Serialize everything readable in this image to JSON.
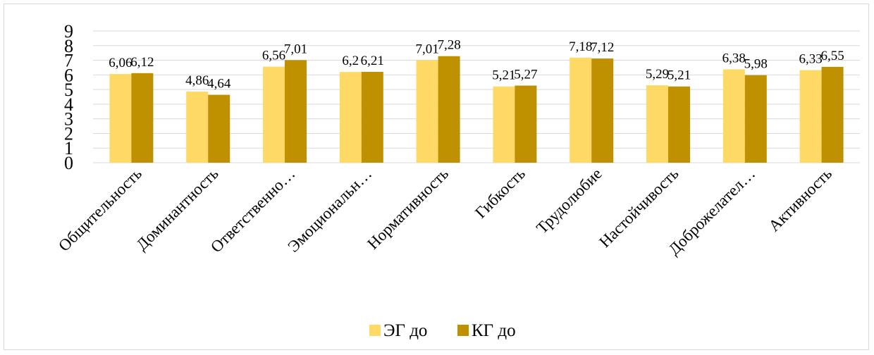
{
  "chart_data": {
    "type": "bar",
    "title": "",
    "xlabel": "",
    "ylabel": "",
    "ylim": [
      0,
      9
    ],
    "yticks": [
      0,
      1,
      2,
      3,
      4,
      5,
      6,
      7,
      8,
      9
    ],
    "grid": true,
    "legend_position": "bottom",
    "categories": [
      "Общительность",
      "Доминантность",
      "Ответственно…",
      "Эмоциональн…",
      "Нормативность",
      "Гибкость",
      "Трудолюбие",
      "Настойчивость",
      "Доброжелател…",
      "Активность"
    ],
    "series": [
      {
        "name": "ЭГ до",
        "color": "#FFD966",
        "values": [
          6.06,
          4.86,
          6.56,
          6.2,
          7.01,
          5.21,
          7.18,
          5.29,
          6.38,
          6.33
        ],
        "labels": [
          "6,06",
          "4,86",
          "6,56",
          "6,2",
          "7,01",
          "5,21",
          "7,18",
          "5,29",
          "6,38",
          "6,33"
        ]
      },
      {
        "name": "КГ до",
        "color": "#BF9000",
        "values": [
          6.12,
          4.64,
          7.01,
          6.21,
          7.28,
          5.27,
          7.12,
          5.21,
          5.98,
          6.55
        ],
        "labels": [
          "6,12",
          "4,64",
          "7,01",
          "6,21",
          "7,28",
          "5,27",
          "7,12",
          "5,21",
          "5,98",
          "6,55"
        ]
      }
    ]
  }
}
